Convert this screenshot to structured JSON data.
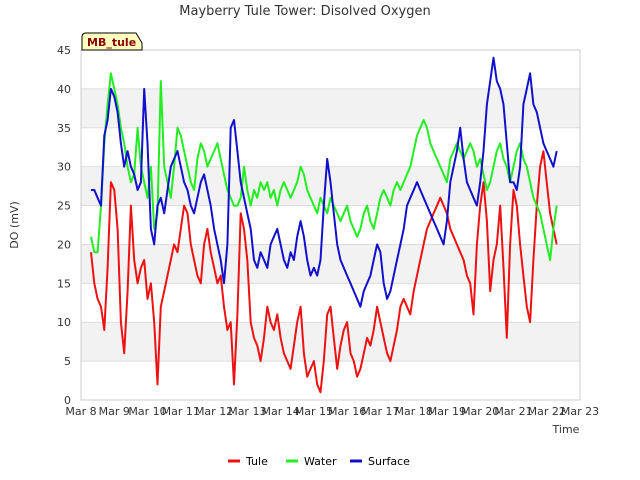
{
  "chart_data": {
    "type": "line",
    "title": "Mayberry Tule Tower: Disolved Oxygen",
    "xlabel": "Time",
    "ylabel": "DO (mV)",
    "station_label": "MB_tule",
    "ylim": [
      0,
      45
    ],
    "yticks": [
      0,
      5,
      10,
      15,
      20,
      25,
      30,
      35,
      40,
      45
    ],
    "xlim": [
      0,
      15
    ],
    "x_tick_labels": [
      "Mar 8",
      "Mar 9",
      "Mar 10",
      "Mar 11",
      "Mar 12",
      "Mar 13",
      "Mar 14",
      "Mar 15",
      "Mar 16",
      "Mar 17",
      "Mar 18",
      "Mar 19",
      "Mar 20",
      "Mar 21",
      "Mar 22",
      "Mar 23"
    ],
    "grid": "horizontal bands",
    "legend_position": "bottom",
    "series": [
      {
        "name": "Tule",
        "color": "#ee1111",
        "x": [
          0.3,
          0.4,
          0.5,
          0.6,
          0.7,
          0.8,
          0.9,
          1.0,
          1.1,
          1.2,
          1.3,
          1.4,
          1.5,
          1.6,
          1.7,
          1.8,
          1.9,
          2.0,
          2.1,
          2.2,
          2.3,
          2.4,
          2.5,
          2.6,
          2.7,
          2.8,
          2.9,
          3.0,
          3.1,
          3.2,
          3.3,
          3.4,
          3.5,
          3.6,
          3.7,
          3.8,
          3.9,
          4.0,
          4.1,
          4.2,
          4.3,
          4.4,
          4.5,
          4.6,
          4.7,
          4.8,
          4.9,
          5.0,
          5.1,
          5.2,
          5.3,
          5.4,
          5.5,
          5.6,
          5.7,
          5.8,
          5.9,
          6.0,
          6.1,
          6.2,
          6.3,
          6.4,
          6.5,
          6.6,
          6.7,
          6.8,
          6.9,
          7.0,
          7.1,
          7.2,
          7.3,
          7.4,
          7.5,
          7.6,
          7.7,
          7.8,
          7.9,
          8.0,
          8.1,
          8.2,
          8.3,
          8.4,
          8.5,
          8.6,
          8.7,
          8.8,
          8.9,
          9.0,
          9.1,
          9.2,
          9.3,
          9.4,
          9.5,
          9.6,
          9.7,
          9.8,
          9.9,
          10.0,
          10.1,
          10.2,
          10.3,
          10.4,
          10.5,
          10.6,
          10.7,
          10.8,
          10.9,
          11.0,
          11.1,
          11.2,
          11.3,
          11.4,
          11.5,
          11.6,
          11.7,
          11.8,
          11.9,
          12.0,
          12.1,
          12.2,
          12.3,
          12.4,
          12.5,
          12.6,
          12.7,
          12.8,
          12.9,
          13.0,
          13.1,
          13.2,
          13.3,
          13.4,
          13.5,
          13.6,
          13.7,
          13.8,
          13.9,
          14.0,
          14.1,
          14.2,
          14.3
        ],
        "y": [
          19,
          15,
          13,
          12,
          9,
          17,
          28,
          27,
          22,
          10,
          6,
          14,
          25,
          18,
          15,
          17,
          18,
          13,
          15,
          10,
          2,
          12,
          14,
          16,
          18,
          20,
          19,
          22,
          25,
          24,
          20,
          18,
          16,
          15,
          20,
          22,
          19,
          17,
          15,
          16,
          12,
          9,
          10,
          2,
          11,
          24,
          22,
          18,
          10,
          8,
          7,
          5,
          8,
          12,
          10,
          9,
          11,
          8,
          6,
          5,
          4,
          7,
          10,
          12,
          6,
          3,
          4,
          5,
          2,
          1,
          5,
          11,
          12,
          8,
          4,
          7,
          9,
          10,
          6,
          5,
          3,
          4,
          6,
          8,
          7,
          9,
          12,
          10,
          8,
          6,
          5,
          7,
          9,
          12,
          13,
          12,
          11,
          14,
          16,
          18,
          20,
          22,
          23,
          24,
          25,
          26,
          25,
          24,
          22,
          21,
          20,
          19,
          18,
          16,
          15,
          11,
          20,
          25,
          28,
          23,
          14,
          18,
          20,
          25,
          17,
          8,
          20,
          27,
          25,
          20,
          16,
          12,
          10,
          18,
          25,
          30,
          32,
          28,
          24,
          22,
          20
        ]
      },
      {
        "name": "Water",
        "color": "#22ee22",
        "x": [
          0.3,
          0.4,
          0.5,
          0.6,
          0.7,
          0.8,
          0.9,
          1.0,
          1.1,
          1.2,
          1.3,
          1.4,
          1.5,
          1.6,
          1.7,
          1.8,
          1.9,
          2.0,
          2.1,
          2.2,
          2.3,
          2.4,
          2.5,
          2.6,
          2.7,
          2.8,
          2.9,
          3.0,
          3.1,
          3.2,
          3.3,
          3.4,
          3.5,
          3.6,
          3.7,
          3.8,
          3.9,
          4.0,
          4.1,
          4.2,
          4.3,
          4.4,
          4.5,
          4.6,
          4.7,
          4.8,
          4.9,
          5.0,
          5.1,
          5.2,
          5.3,
          5.4,
          5.5,
          5.6,
          5.7,
          5.8,
          5.9,
          6.0,
          6.1,
          6.2,
          6.3,
          6.4,
          6.5,
          6.6,
          6.7,
          6.8,
          6.9,
          7.0,
          7.1,
          7.2,
          7.3,
          7.4,
          7.5,
          7.6,
          7.7,
          7.8,
          7.9,
          8.0,
          8.1,
          8.2,
          8.3,
          8.4,
          8.5,
          8.6,
          8.7,
          8.8,
          8.9,
          9.0,
          9.1,
          9.2,
          9.3,
          9.4,
          9.5,
          9.6,
          9.7,
          9.8,
          9.9,
          10.0,
          10.1,
          10.2,
          10.3,
          10.4,
          10.5,
          10.6,
          10.7,
          10.8,
          10.9,
          11.0,
          11.1,
          11.2,
          11.3,
          11.4,
          11.5,
          11.6,
          11.7,
          11.8,
          11.9,
          12.0,
          12.1,
          12.2,
          12.3,
          12.4,
          12.5,
          12.6,
          12.7,
          12.8,
          12.9,
          13.0,
          13.1,
          13.2,
          13.3,
          13.4,
          13.5,
          13.6,
          13.7,
          13.8,
          13.9,
          14.0,
          14.1,
          14.2,
          14.3
        ],
        "y": [
          21,
          19,
          19,
          25,
          33,
          38,
          42,
          40,
          38,
          35,
          33,
          30,
          28,
          29,
          35,
          30,
          28,
          26,
          30,
          22,
          24,
          41,
          30,
          28,
          26,
          30,
          35,
          34,
          32,
          30,
          28,
          27,
          31,
          33,
          32,
          30,
          31,
          32,
          33,
          31,
          29,
          27,
          26,
          25,
          25,
          26,
          30,
          27,
          25,
          27,
          26,
          28,
          27,
          28,
          26,
          27,
          25,
          27,
          28,
          27,
          26,
          27,
          28,
          30,
          29,
          27,
          26,
          25,
          24,
          26,
          25,
          24,
          26,
          25,
          24,
          23,
          24,
          25,
          23,
          22,
          21,
          22,
          24,
          25,
          23,
          22,
          24,
          26,
          27,
          26,
          25,
          27,
          28,
          27,
          28,
          29,
          30,
          32,
          34,
          35,
          36,
          35,
          33,
          32,
          31,
          30,
          29,
          28,
          31,
          32,
          33,
          32,
          31,
          32,
          33,
          32,
          30,
          31,
          29,
          27,
          28,
          30,
          32,
          33,
          31,
          30,
          28,
          30,
          32,
          33,
          31,
          30,
          28,
          26,
          25,
          24,
          22,
          20,
          18,
          22,
          25
        ]
      },
      {
        "name": "Surface",
        "color": "#1111cc",
        "x": [
          0.3,
          0.4,
          0.5,
          0.6,
          0.7,
          0.8,
          0.9,
          1.0,
          1.1,
          1.2,
          1.3,
          1.4,
          1.5,
          1.6,
          1.7,
          1.8,
          1.9,
          2.0,
          2.1,
          2.2,
          2.3,
          2.4,
          2.5,
          2.6,
          2.7,
          2.8,
          2.9,
          3.0,
          3.1,
          3.2,
          3.3,
          3.4,
          3.5,
          3.6,
          3.7,
          3.8,
          3.9,
          4.0,
          4.1,
          4.2,
          4.3,
          4.4,
          4.5,
          4.6,
          4.7,
          4.8,
          4.9,
          5.0,
          5.1,
          5.2,
          5.3,
          5.4,
          5.5,
          5.6,
          5.7,
          5.8,
          5.9,
          6.0,
          6.1,
          6.2,
          6.3,
          6.4,
          6.5,
          6.6,
          6.7,
          6.8,
          6.9,
          7.0,
          7.1,
          7.2,
          7.3,
          7.4,
          7.5,
          7.6,
          7.7,
          7.8,
          7.9,
          8.0,
          8.1,
          8.2,
          8.3,
          8.4,
          8.5,
          8.6,
          8.7,
          8.8,
          8.9,
          9.0,
          9.1,
          9.2,
          9.3,
          9.4,
          9.5,
          9.6,
          9.7,
          9.8,
          9.9,
          10.0,
          10.1,
          10.2,
          10.3,
          10.4,
          10.5,
          10.6,
          10.7,
          10.8,
          10.9,
          11.0,
          11.1,
          11.2,
          11.3,
          11.4,
          11.5,
          11.6,
          11.7,
          11.8,
          11.9,
          12.0,
          12.1,
          12.2,
          12.3,
          12.4,
          12.5,
          12.6,
          12.7,
          12.8,
          12.9,
          13.0,
          13.1,
          13.2,
          13.3,
          13.4,
          13.5,
          13.6,
          13.7,
          13.8,
          13.9,
          14.0,
          14.1,
          14.2,
          14.3
        ],
        "y": [
          27,
          27,
          26,
          25,
          34,
          36,
          40,
          39,
          37,
          33,
          30,
          32,
          30,
          29,
          27,
          28,
          40,
          33,
          22,
          20,
          25,
          26,
          24,
          27,
          30,
          31,
          32,
          30,
          28,
          27,
          25,
          24,
          26,
          28,
          29,
          27,
          25,
          22,
          20,
          18,
          15,
          20,
          35,
          36,
          32,
          28,
          26,
          24,
          22,
          18,
          17,
          19,
          18,
          17,
          20,
          21,
          22,
          20,
          18,
          17,
          19,
          18,
          21,
          23,
          21,
          18,
          16,
          17,
          16,
          18,
          25,
          31,
          28,
          24,
          20,
          18,
          17,
          16,
          15,
          14,
          13,
          12,
          14,
          15,
          16,
          18,
          20,
          19,
          15,
          13,
          14,
          16,
          18,
          20,
          22,
          25,
          26,
          27,
          28,
          27,
          26,
          25,
          24,
          23,
          22,
          21,
          20,
          23,
          28,
          30,
          32,
          35,
          31,
          28,
          27,
          26,
          25,
          28,
          32,
          38,
          41,
          44,
          41,
          40,
          38,
          33,
          28,
          28,
          27,
          30,
          38,
          40,
          42,
          38,
          37,
          35,
          33,
          32,
          31,
          30,
          32
        ]
      }
    ]
  }
}
